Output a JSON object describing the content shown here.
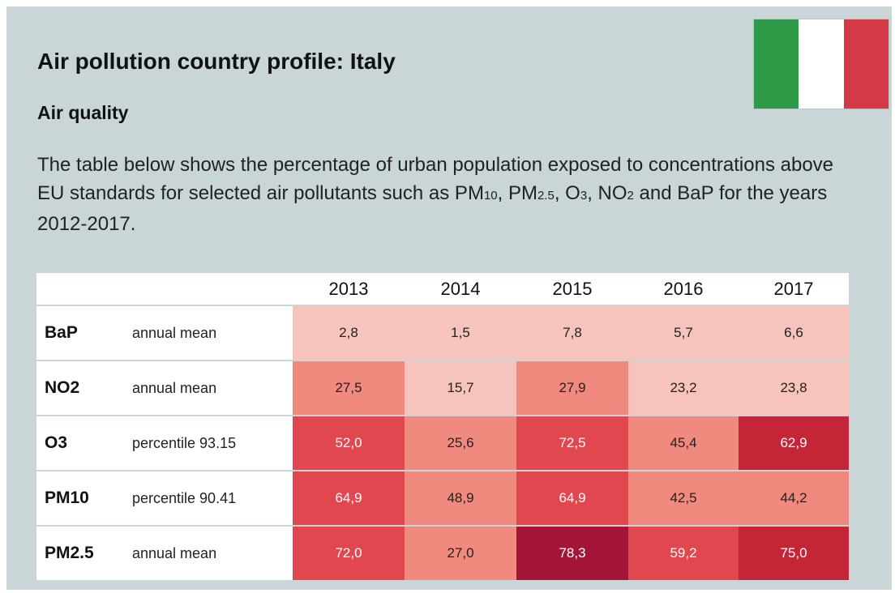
{
  "title": "Air pollution country profile: Italy",
  "subtitle": "Air quality",
  "description": {
    "part1": "The table below shows the percentage of urban population exposed to concentrations above EU standards for selected air pollutants such as PM",
    "pm10_sub": "10",
    "part2": ", PM",
    "pm25_sub": "2.5",
    "part3": ", O",
    "o3_sub": "3",
    "part4": ", NO",
    "no2_sub": "2",
    "part5": " and BaP for the years 2012-2017."
  },
  "flag": {
    "colors": [
      "#2f9a48",
      "#ffffff",
      "#d43a45"
    ]
  },
  "table": {
    "years": [
      "2013",
      "2014",
      "2015",
      "2016",
      "2017"
    ],
    "rows": [
      {
        "pollutant": "BaP",
        "metric": "annual mean",
        "values": [
          "2,8",
          "1,5",
          "7,8",
          "5,7",
          "6,6"
        ],
        "colors": [
          "#f7c3bd",
          "#f7c3bd",
          "#f7c3bd",
          "#f7c3bd",
          "#f7c3bd"
        ],
        "text_colors": [
          "#222",
          "#222",
          "#222",
          "#222",
          "#222"
        ]
      },
      {
        "pollutant": "NO2",
        "metric": "annual mean",
        "values": [
          "27,5",
          "15,7",
          "27,9",
          "23,2",
          "23,8"
        ],
        "colors": [
          "#f08a7e",
          "#f7c3bd",
          "#f08a7e",
          "#f7c3bd",
          "#f7c3bd"
        ],
        "text_colors": [
          "#222",
          "#222",
          "#222",
          "#222",
          "#222"
        ]
      },
      {
        "pollutant": "O3",
        "metric": "percentile 93.15",
        "values": [
          "52,0",
          "25,6",
          "72,5",
          "45,4",
          "62,9"
        ],
        "colors": [
          "#e0474f",
          "#f08a7e",
          "#e0474f",
          "#f08a7e",
          "#c42638"
        ],
        "text_colors": [
          "#ffffff",
          "#222",
          "#ffffff",
          "#222",
          "#ffffff"
        ]
      },
      {
        "pollutant": "PM10",
        "metric": "percentile 90.41",
        "values": [
          "64,9",
          "48,9",
          "64,9",
          "42,5",
          "44,2"
        ],
        "colors": [
          "#e0474f",
          "#f08a7e",
          "#e0474f",
          "#f08a7e",
          "#f08a7e"
        ],
        "text_colors": [
          "#ffffff",
          "#222",
          "#ffffff",
          "#222",
          "#222"
        ]
      },
      {
        "pollutant": "PM2.5",
        "metric": "annual mean",
        "values": [
          "72,0",
          "27,0",
          "78,3",
          "59,2",
          "75,0"
        ],
        "colors": [
          "#e0474f",
          "#f08a7e",
          "#a3163a",
          "#e0474f",
          "#c42638"
        ],
        "text_colors": [
          "#ffffff",
          "#222",
          "#ffffff",
          "#ffffff",
          "#ffffff"
        ]
      }
    ]
  }
}
